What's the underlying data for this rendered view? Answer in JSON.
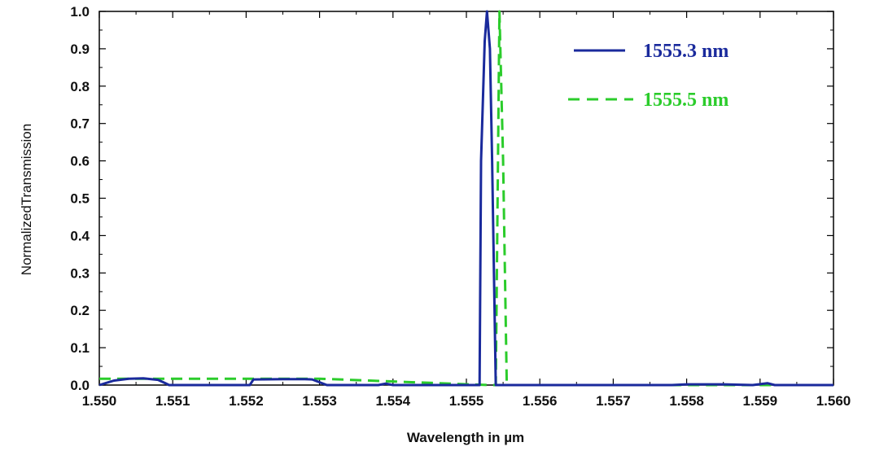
{
  "chart_data": {
    "type": "line",
    "title": "",
    "xlabel": "Wavelength in µm",
    "ylabel": "NormalizedTransmission",
    "xlim": [
      1.55,
      1.56
    ],
    "ylim": [
      0,
      1.0
    ],
    "x_ticks": [
      "1.550",
      "1.551",
      "1.552",
      "1.553",
      "1.554",
      "1.555",
      "1.556",
      "1.557",
      "1.558",
      "1.559",
      "1.560"
    ],
    "y_ticks": [
      "0.0",
      "0.1",
      "0.2",
      "0.3",
      "0.4",
      "0.5",
      "0.6",
      "0.7",
      "0.8",
      "0.9",
      "1.0"
    ],
    "grid": false,
    "legend_position": "top-right",
    "series": [
      {
        "name": "1555.3 nm",
        "color": "#1a2a9c",
        "style": "solid",
        "x": [
          1.55,
          1.5502,
          1.5504,
          1.5506,
          1.5508,
          1.5509,
          1.55095,
          1.5515,
          1.55205,
          1.5521,
          1.5525,
          1.5528,
          1.5529,
          1.5531,
          1.5536,
          1.5538,
          1.5539,
          1.554,
          1.5545,
          1.55518,
          1.5552,
          1.55525,
          1.55528,
          1.55532,
          1.55535,
          1.5554,
          1.556,
          1.557,
          1.5578,
          1.558,
          1.5585,
          1.5589,
          1.5591,
          1.5592,
          1.5593,
          1.5594,
          1.56
        ],
        "y": [
          0.0,
          0.012,
          0.017,
          0.018,
          0.014,
          0.005,
          0.0,
          0.0,
          0.0,
          0.015,
          0.016,
          0.016,
          0.015,
          0.0,
          0.0,
          0.0,
          0.004,
          0.0,
          0.0,
          0.0,
          0.6,
          0.92,
          1.0,
          0.9,
          0.6,
          0.0,
          0.0,
          0.0,
          0.0,
          0.002,
          0.002,
          0.0,
          0.005,
          0.0,
          0.0,
          0.0,
          0.0
        ]
      },
      {
        "name": "1555.5 nm",
        "color": "#2bcc2b",
        "style": "dashed",
        "x": [
          1.55,
          1.553,
          1.5553,
          1.5554,
          1.55545,
          1.5555,
          1.55555,
          1.556,
          1.56
        ],
        "y": [
          0.017,
          0.017,
          0.0,
          0.0,
          1.0,
          0.6,
          0.0,
          0.0,
          0.0
        ]
      }
    ]
  }
}
